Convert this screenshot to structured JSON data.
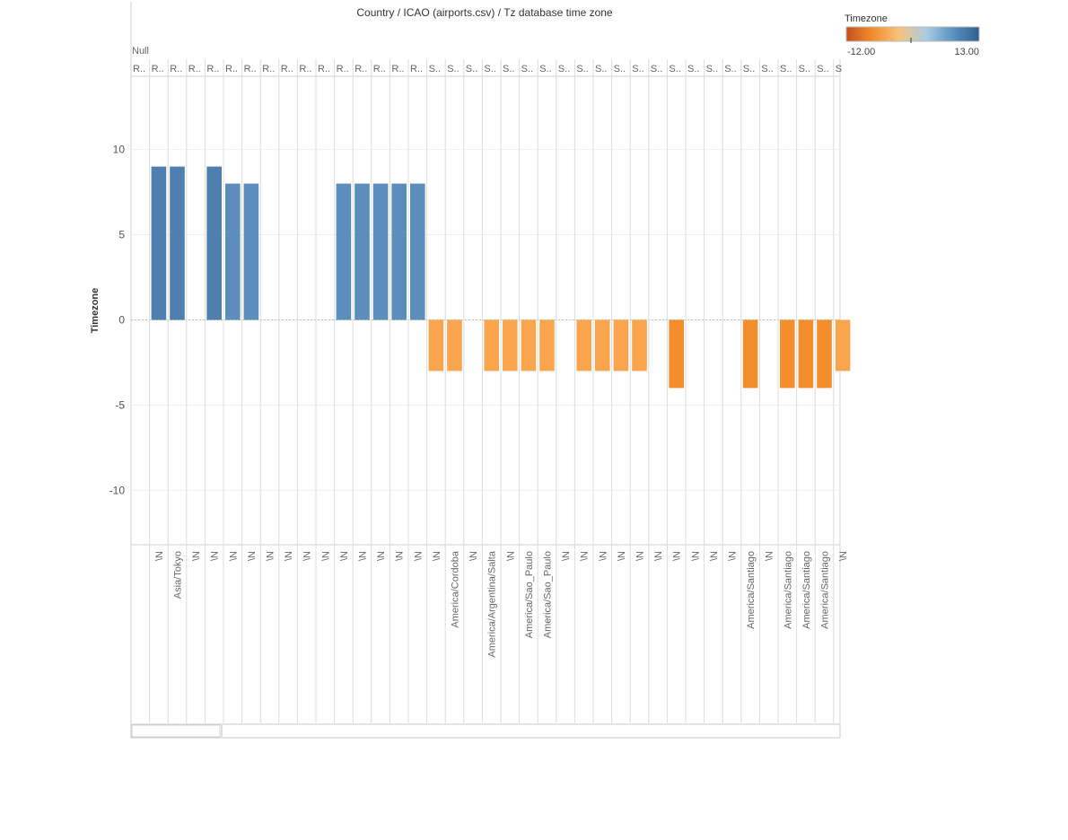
{
  "chart_data": {
    "type": "bar",
    "title": "Country  /  ICAO (airports.csv)  /  Tz database time zone",
    "top_header": "Null",
    "ylabel": "Timezone",
    "ylim": [
      -13.2,
      14.3
    ],
    "yticks": [
      10,
      5,
      0,
      -5,
      -10
    ],
    "grid": true,
    "legend": {
      "title": "Timezone",
      "min_label": "-12.00",
      "max_label": "13.00",
      "placement": "top-right",
      "colors": [
        "#c4501d",
        "#f28e2b",
        "#f7c27e",
        "#a9cde3",
        "#5b93c1",
        "#2d5f8e"
      ]
    },
    "columns": [
      {
        "header": "R..",
        "tz": "",
        "value": null
      },
      {
        "header": "R..",
        "tz": "\\N",
        "value": 9
      },
      {
        "header": "R..",
        "tz": "Asia/Tokyo",
        "value": 9
      },
      {
        "header": "R..",
        "tz": "\\N",
        "value": null
      },
      {
        "header": "R..",
        "tz": "\\N",
        "value": 9
      },
      {
        "header": "R..",
        "tz": "\\N",
        "value": 8
      },
      {
        "header": "R..",
        "tz": "\\N",
        "value": 8
      },
      {
        "header": "R..",
        "tz": "\\N",
        "value": null
      },
      {
        "header": "R..",
        "tz": "\\N",
        "value": null
      },
      {
        "header": "R..",
        "tz": "\\N",
        "value": null
      },
      {
        "header": "R..",
        "tz": "\\N",
        "value": null
      },
      {
        "header": "R..",
        "tz": "\\N",
        "value": 8
      },
      {
        "header": "R..",
        "tz": "\\N",
        "value": 8
      },
      {
        "header": "R..",
        "tz": "\\N",
        "value": 8
      },
      {
        "header": "R..",
        "tz": "\\N",
        "value": 8
      },
      {
        "header": "R..",
        "tz": "\\N",
        "value": 8
      },
      {
        "header": "S..",
        "tz": "\\N",
        "value": -3
      },
      {
        "header": "S..",
        "tz": "America/Cordoba",
        "value": -3
      },
      {
        "header": "S..",
        "tz": "\\N",
        "value": null
      },
      {
        "header": "S..",
        "tz": "America/Argentina/Salta",
        "value": -3
      },
      {
        "header": "S..",
        "tz": "\\N",
        "value": -3
      },
      {
        "header": "S..",
        "tz": "America/Sao_Paulo",
        "value": -3
      },
      {
        "header": "S..",
        "tz": "America/Sao_Paulo",
        "value": -3
      },
      {
        "header": "S..",
        "tz": "\\N",
        "value": null
      },
      {
        "header": "S..",
        "tz": "\\N",
        "value": -3
      },
      {
        "header": "S..",
        "tz": "\\N",
        "value": -3
      },
      {
        "header": "S..",
        "tz": "\\N",
        "value": -3
      },
      {
        "header": "S..",
        "tz": "\\N",
        "value": -3
      },
      {
        "header": "S..",
        "tz": "\\N",
        "value": null
      },
      {
        "header": "S..",
        "tz": "\\N",
        "value": -4
      },
      {
        "header": "S..",
        "tz": "\\N",
        "value": null
      },
      {
        "header": "S..",
        "tz": "\\N",
        "value": null
      },
      {
        "header": "S..",
        "tz": "\\N",
        "value": null
      },
      {
        "header": "S..",
        "tz": "America/Santiago",
        "value": -4
      },
      {
        "header": "S..",
        "tz": "\\N",
        "value": null
      },
      {
        "header": "S..",
        "tz": "America/Santiago",
        "value": -4
      },
      {
        "header": "S..",
        "tz": "America/Santiago",
        "value": -4
      },
      {
        "header": "S..",
        "tz": "America/Santiago",
        "value": -4
      },
      {
        "header": "S",
        "tz": "\\N",
        "value": -3
      }
    ]
  }
}
